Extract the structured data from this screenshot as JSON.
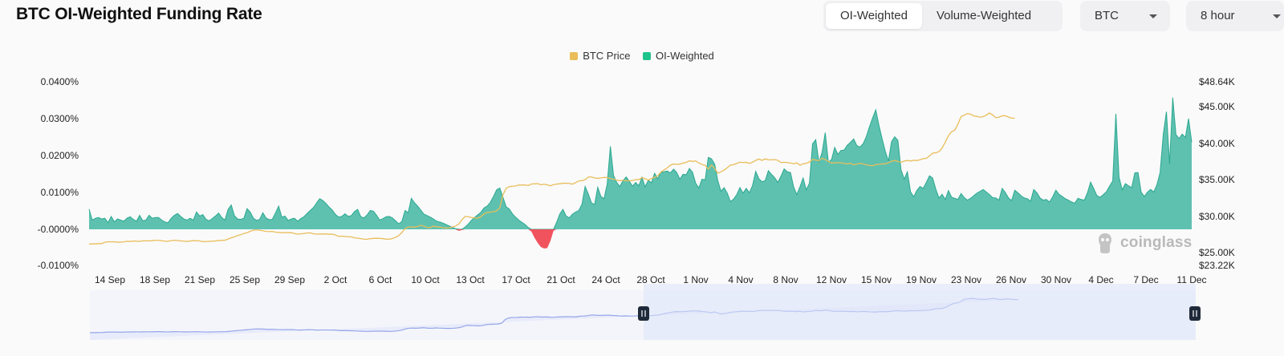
{
  "header": {
    "title": "BTC OI-Weighted Funding Rate",
    "tabs": [
      {
        "label": "OI-Weighted",
        "active": true
      },
      {
        "label": "Volume-Weighted",
        "active": false
      }
    ],
    "symbol_select": "BTC",
    "interval_select": "8 hour"
  },
  "watermark": "coinglass",
  "chart_data": {
    "type": "area",
    "legend": [
      {
        "name": "BTC Price",
        "color": "#e9bd5a"
      },
      {
        "name": "OI-Weighted",
        "color": "#1ec48a"
      }
    ],
    "legend_position": "top-center",
    "grid": false,
    "x_tick_labels": [
      "14 Sep",
      "18 Sep",
      "21 Sep",
      "25 Sep",
      "29 Sep",
      "2 Oct",
      "6 Oct",
      "10 Oct",
      "13 Oct",
      "17 Oct",
      "21 Oct",
      "24 Oct",
      "28 Oct",
      "1 Nov",
      "4 Nov",
      "8 Nov",
      "12 Nov",
      "15 Nov",
      "19 Nov",
      "23 Nov",
      "26 Nov",
      "30 Nov",
      "4 Dec",
      "7 Dec",
      "11 Dec"
    ],
    "left_axis": {
      "ticks": [
        "0.0400%",
        "0.0300%",
        "0.0200%",
        "0.0100%",
        "-0.0000%",
        "-0.0100%"
      ],
      "range": [
        -0.01,
        0.04
      ]
    },
    "right_axis": {
      "ticks": [
        "$48.64K",
        "$45.00K",
        "$40.00K",
        "$35.00K",
        "$30.00K",
        "$25.00K",
        "$23.22K"
      ],
      "range": [
        23.22,
        48.64
      ]
    },
    "series": [
      {
        "name": "OI-Weighted",
        "unit": "%",
        "positive_color": "#1ec48a",
        "negative_color": "#f0525e",
        "values": [
          0.0055,
          0.0025,
          0.003,
          0.0032,
          0.0028,
          0.003,
          0.0018,
          0.0035,
          0.002,
          0.0028,
          0.0025,
          0.0022,
          0.003,
          0.0034,
          0.0027,
          0.0022,
          0.0038,
          0.0023,
          0.0025,
          0.0038,
          0.003,
          0.0032,
          0.0032,
          0.0025,
          0.002,
          0.0018,
          0.003,
          0.0038,
          0.0043,
          0.0035,
          0.0028,
          0.0025,
          0.003,
          0.0025,
          0.0047,
          0.0036,
          0.004,
          0.0027,
          0.0023,
          0.0029,
          0.0036,
          0.0044,
          0.0032,
          0.0025,
          0.0054,
          0.0066,
          0.0037,
          0.0028,
          0.0027,
          0.003,
          0.0056,
          0.0047,
          0.003,
          0.0024,
          0.0027,
          0.0045,
          0.0031,
          0.0026,
          0.0027,
          0.0044,
          0.0063,
          0.0033,
          0.0036,
          0.0024,
          0.0028,
          0.003,
          0.0022,
          0.0029,
          0.0034,
          0.0043,
          0.0051,
          0.0059,
          0.0071,
          0.0083,
          0.0078,
          0.007,
          0.006,
          0.0052,
          0.004,
          0.0033,
          0.0035,
          0.0042,
          0.0035,
          0.0037,
          0.0048,
          0.0054,
          0.0034,
          0.0031,
          0.0039,
          0.0051,
          0.0049,
          0.0038,
          0.0025,
          0.0029,
          0.0034,
          0.0035,
          0.0031,
          0.0023,
          0.0015,
          0.0021,
          0.0051,
          0.0045,
          0.0084,
          0.0072,
          0.0063,
          0.0052,
          0.0041,
          0.0037,
          0.0033,
          0.0028,
          0.0022,
          0.002,
          0.0017,
          0.0013,
          0.0009,
          0.0005,
          0.0002,
          -0.0004,
          -0.0002,
          0.0006,
          0.0014,
          0.0024,
          0.0032,
          0.0039,
          0.0046,
          0.0058,
          0.0063,
          0.0073,
          0.0089,
          0.0107,
          0.0112,
          0.0087,
          0.0061,
          0.0055,
          0.0042,
          0.0033,
          0.0025,
          0.0019,
          0.0013,
          0.0005,
          -0.0006,
          -0.0023,
          -0.0037,
          -0.0048,
          -0.0052,
          -0.0051,
          -0.0032,
          -0.0004,
          0.0019,
          0.0042,
          0.0054,
          0.0036,
          0.0031,
          0.0041,
          0.0047,
          0.0051,
          0.0068,
          0.0116,
          0.0096,
          0.0072,
          0.0067,
          0.0114,
          0.0089,
          0.0083,
          0.0123,
          0.0225,
          0.0146,
          0.0127,
          0.0116,
          0.0132,
          0.0142,
          0.013,
          0.0117,
          0.0127,
          0.0118,
          0.0141,
          0.0115,
          0.0133,
          0.0126,
          0.0152,
          0.0137,
          0.0155,
          0.0156,
          0.0158,
          0.0153,
          0.0163,
          0.0154,
          0.0136,
          0.0149,
          0.0148,
          0.0165,
          0.0155,
          0.0125,
          0.0112,
          0.0136,
          0.0134,
          0.0195,
          0.0191,
          0.0177,
          0.0132,
          0.0103,
          0.0113,
          0.0098,
          0.0075,
          0.0082,
          0.0094,
          0.0113,
          0.0098,
          0.0111,
          0.0099,
          0.0119,
          0.0157,
          0.0137,
          0.0129,
          0.0132,
          0.0159,
          0.0149,
          0.014,
          0.0127,
          0.0144,
          0.0164,
          0.0156,
          0.0154,
          0.0115,
          0.0094,
          0.0115,
          0.0139,
          0.0107,
          0.0125,
          0.0232,
          0.0243,
          0.0182,
          0.0208,
          0.0262,
          0.0182,
          0.0189,
          0.0222,
          0.0203,
          0.0214,
          0.0215,
          0.0228,
          0.0236,
          0.0245,
          0.0227,
          0.0223,
          0.0232,
          0.0251,
          0.0278,
          0.0302,
          0.0324,
          0.0282,
          0.0246,
          0.0212,
          0.0185,
          0.0238,
          0.0251,
          0.0241,
          0.0161,
          0.0136,
          0.0156,
          0.0102,
          0.0088,
          0.0105,
          0.0116,
          0.0111,
          0.0127,
          0.0145,
          0.0139,
          0.0109,
          0.0085,
          0.0095,
          0.0081,
          0.0105,
          0.0087,
          0.0084,
          0.0081,
          0.0097,
          0.0086,
          0.0079,
          0.0084,
          0.0091,
          0.0098,
          0.0103,
          0.0108,
          0.0101,
          0.0094,
          0.0086,
          0.0085,
          0.0079,
          0.0111,
          0.01,
          0.0085,
          0.0078,
          0.0106,
          0.0099,
          0.0091,
          0.0085,
          0.0083,
          0.0076,
          0.0108,
          0.0099,
          0.0085,
          0.0079,
          0.0081,
          0.0074,
          0.0088,
          0.0106,
          0.0095,
          0.0089,
          0.0083,
          0.0079,
          0.0074,
          0.0071,
          0.0084,
          0.0081,
          0.0079,
          0.0099,
          0.0128,
          0.011,
          0.0091,
          0.0087,
          0.0094,
          0.0102,
          0.0117,
          0.0131,
          0.0313,
          0.0141,
          0.0107,
          0.0124,
          0.0118,
          0.0113,
          0.0153,
          0.0154,
          0.0101,
          0.0089,
          0.0101,
          0.0108,
          0.0101,
          0.0121,
          0.0154,
          0.0258,
          0.0319,
          0.0177,
          0.0357,
          0.0257,
          0.0246,
          0.0258,
          0.0249,
          0.03,
          0.0236
        ]
      },
      {
        "name": "BTC Price",
        "unit": "USD (thousands)",
        "color": "#e9bd5a",
        "values": [
          26.19,
          26.18,
          26.21,
          26.24,
          26.24,
          26.42,
          26.49,
          26.48,
          26.49,
          26.43,
          26.44,
          26.48,
          26.56,
          26.53,
          26.59,
          26.57,
          26.54,
          26.63,
          26.61,
          26.62,
          26.64,
          26.69,
          26.69,
          26.63,
          26.56,
          26.56,
          26.65,
          26.7,
          26.66,
          26.61,
          26.58,
          26.53,
          26.61,
          26.64,
          26.63,
          26.61,
          26.51,
          26.52,
          26.55,
          26.57,
          26.61,
          26.67,
          26.68,
          26.71,
          26.87,
          27.04,
          27.18,
          27.36,
          27.46,
          27.65,
          27.74,
          27.94,
          28.1,
          28.13,
          28.08,
          28.02,
          27.92,
          27.91,
          27.92,
          27.83,
          27.79,
          27.73,
          27.77,
          27.75,
          27.76,
          27.63,
          27.55,
          27.59,
          27.63,
          27.7,
          27.73,
          27.59,
          27.55,
          27.57,
          27.57,
          27.57,
          27.54,
          27.55,
          27.43,
          27.24,
          27.27,
          27.22,
          27.18,
          27.17,
          27.04,
          26.99,
          26.92,
          26.84,
          26.84,
          26.92,
          26.96,
          26.99,
          26.97,
          26.92,
          26.86,
          26.84,
          26.94,
          27.1,
          27.35,
          27.77,
          28.29,
          28.53,
          28.56,
          28.5,
          28.61,
          28.77,
          28.64,
          28.48,
          28.46,
          28.66,
          28.57,
          28.53,
          28.42,
          28.4,
          28.42,
          28.53,
          28.68,
          28.93,
          29.53,
          29.99,
          29.96,
          29.85,
          29.81,
          29.74,
          29.96,
          30.36,
          30.54,
          30.6,
          30.64,
          30.78,
          31.19,
          32.98,
          33.88,
          34.13,
          34.18,
          34.21,
          34.36,
          34.34,
          34.36,
          34.27,
          34.49,
          34.51,
          34.54,
          34.38,
          34.46,
          34.38,
          34.24,
          34.4,
          34.47,
          34.52,
          34.59,
          34.6,
          34.57,
          34.47,
          34.68,
          34.92,
          34.95,
          35.08,
          35.44,
          35.47,
          35.32,
          35.27,
          35.33,
          35.4,
          35.38,
          35.24,
          35.17,
          35.03,
          34.94,
          35.01,
          34.94,
          34.93,
          34.97,
          35.1,
          35.09,
          35.38,
          35.21,
          35.03,
          35.26,
          35.42,
          35.63,
          36.15,
          36.44,
          36.72,
          37.1,
          37.27,
          37.21,
          37.24,
          37.38,
          37.47,
          37.7,
          37.62,
          37.69,
          37.39,
          37.19,
          37.08,
          36.54,
          37.1,
          36.65,
          35.99,
          36.17,
          36.41,
          36.75,
          37.1,
          37.18,
          37.33,
          37.51,
          37.46,
          37.49,
          37.34,
          37.51,
          37.76,
          37.94,
          37.76,
          37.97,
          37.84,
          37.83,
          37.87,
          37.77,
          37.46,
          37.5,
          37.46,
          37.4,
          37.28,
          37.42,
          37.09,
          37.29,
          37.36,
          37.51,
          37.89,
          37.8,
          37.71,
          38.06,
          37.88,
          37.58,
          37.41,
          37.4,
          37.46,
          37.43,
          37.32,
          37.28,
          37.37,
          37.14,
          37.24,
          37.36,
          37.28,
          37.14,
          37.07,
          37.02,
          37.17,
          37.21,
          37.28,
          37.27,
          37.44,
          37.63,
          37.75,
          37.61,
          37.5,
          37.65,
          37.75,
          37.67,
          37.77,
          37.74,
          37.84,
          37.99,
          38.04,
          38.38,
          38.76,
          38.81,
          38.97,
          39.46,
          40.29,
          41.18,
          41.73,
          41.94,
          42.78,
          43.82,
          44.03,
          44.24,
          44.16,
          43.91,
          43.86,
          43.73,
          43.81,
          44.04,
          44.32,
          44.04,
          43.66,
          43.74,
          43.93,
          43.94,
          43.74,
          43.62,
          43.59
        ]
      }
    ],
    "navigator": {
      "type": "area",
      "series": "BTC Price",
      "selected_range": [
        "28 Oct",
        "11 Dec"
      ]
    }
  },
  "colors": {
    "positive_fill": "#5ec1b0",
    "positive_line": "#2aa88f",
    "negative": "#f0525e",
    "price_line": "#e9bd5a",
    "navigator_fill": "#e8ebfa",
    "navigator_line": "#94a6e8",
    "navigator_selection": "#dce3fa"
  }
}
